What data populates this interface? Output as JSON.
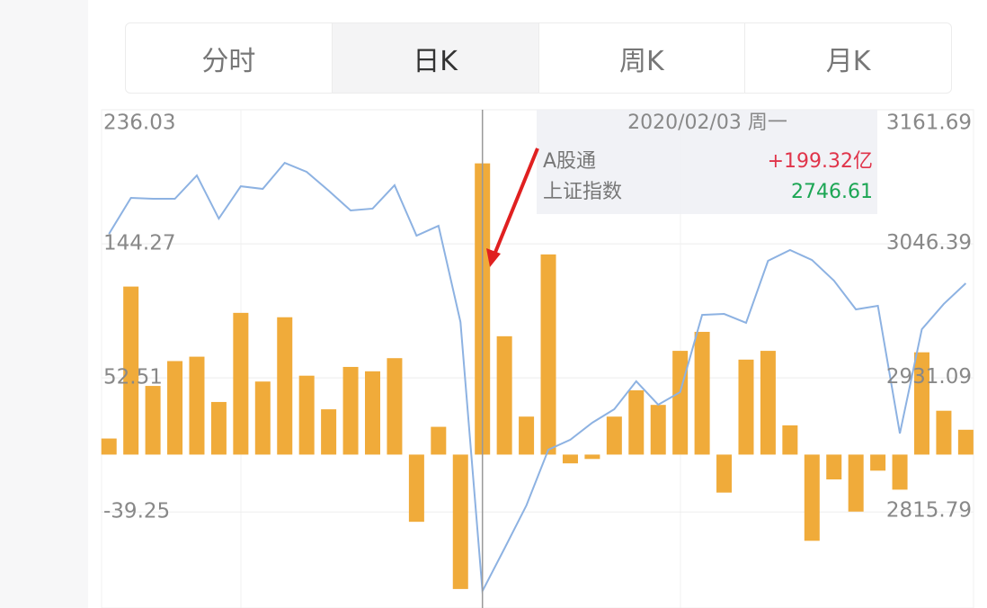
{
  "tabs": [
    "分时",
    "日K",
    "周K",
    "月K"
  ],
  "active_tab": 1,
  "chart_data": {
    "type": "bar-line",
    "categories": [
      null,
      null,
      null,
      null,
      null,
      null,
      null,
      null,
      null,
      null,
      null,
      null,
      null,
      null,
      null,
      null,
      null,
      "2020/02/03 周一",
      null,
      null,
      null,
      null,
      null,
      null,
      null,
      null,
      null,
      null,
      null,
      null,
      null,
      null,
      null,
      null,
      null,
      null,
      null,
      null,
      null,
      null
    ],
    "series": [
      {
        "name": "A股通",
        "type": "bar",
        "color": "#f0ab3a",
        "values": [
          11,
          115,
          47,
          64,
          67,
          36,
          97,
          50,
          94,
          54,
          31,
          60,
          57,
          66,
          -46,
          19,
          -92,
          199.32,
          81,
          26,
          137,
          -6,
          -3,
          26,
          44,
          34,
          71,
          84,
          -26,
          65,
          71,
          20,
          -59,
          -17,
          -39,
          -11,
          -24,
          70,
          30,
          17
        ],
        "value_labels": [
          null,
          null,
          null,
          null,
          null,
          null,
          null,
          null,
          null,
          null,
          null,
          null,
          null,
          null,
          null,
          null,
          null,
          "+199.32亿",
          null,
          null,
          null,
          null,
          null,
          null,
          null,
          null,
          null,
          null,
          null,
          null,
          null,
          null,
          null,
          null,
          null,
          null,
          null,
          null,
          null,
          null
        ]
      },
      {
        "name": "上证指数",
        "type": "line",
        "axis": "y2",
        "color": "#8db2e2",
        "values": [
          3054.6,
          3085.7,
          3084.9,
          3084.9,
          3105.0,
          3067.8,
          3095.7,
          3093.4,
          3115.9,
          3108.1,
          3091.9,
          3074.8,
          3076.4,
          3096.6,
          3053.1,
          3061.6,
          2978.6,
          2746.61,
          2783.2,
          2820.4,
          2868.5,
          2877.1,
          2891.8,
          2903.4,
          2927.5,
          2907.3,
          2918.2,
          2984.8,
          2985.6,
          2977.9,
          3031.4,
          3040.7,
          3032.1,
          3014.3,
          2989.5,
          2992.6,
          2882.5,
          2972.4,
          2994.2,
          3012.0
        ]
      }
    ],
    "ylim": [
      -105,
      236.03
    ],
    "yticks": [
      -39.25,
      52.51,
      144.27,
      236.03
    ],
    "y2lim": [
      2732,
      3161.69
    ],
    "y2ticks": [
      2815.79,
      2931.09,
      3046.39,
      3161.69
    ],
    "grid": true
  }
}
